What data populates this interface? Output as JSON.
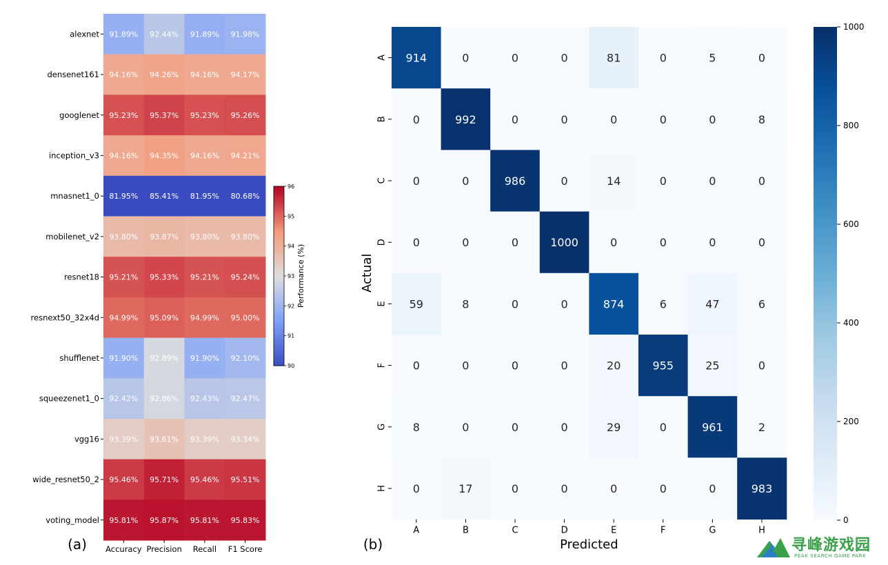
{
  "chart_data": [
    {
      "type": "heatmap",
      "panel_label": "(a)",
      "rows": [
        "alexnet",
        "densenet161",
        "googlenet",
        "inception_v3",
        "mnasnet1_0",
        "mobilenet_v2",
        "resnet18",
        "resnext50_32x4d",
        "shufflenet",
        "squeezenet1_0",
        "vgg16",
        "wide_resnet50_2",
        "voting_model"
      ],
      "columns": [
        "Accuracy",
        "Precision",
        "Recall",
        "F1 Score"
      ],
      "values": [
        [
          91.89,
          92.44,
          91.89,
          91.98
        ],
        [
          94.16,
          94.26,
          94.16,
          94.17
        ],
        [
          95.23,
          95.37,
          95.23,
          95.26
        ],
        [
          94.16,
          94.35,
          94.16,
          94.21
        ],
        [
          81.95,
          85.41,
          81.95,
          80.68
        ],
        [
          93.8,
          93.87,
          93.8,
          93.8
        ],
        [
          95.21,
          95.33,
          95.21,
          95.24
        ],
        [
          94.99,
          95.09,
          94.99,
          95.0
        ],
        [
          91.9,
          92.89,
          91.9,
          92.1
        ],
        [
          92.42,
          92.86,
          92.43,
          92.47
        ],
        [
          93.39,
          93.61,
          93.39,
          93.34
        ],
        [
          95.46,
          95.71,
          95.46,
          95.51
        ],
        [
          95.81,
          95.87,
          95.81,
          95.83
        ]
      ],
      "value_suffix": "%",
      "colormap": "coolwarm",
      "colorbar": {
        "label": "Performance (%)",
        "range": [
          90,
          96
        ],
        "ticks": [
          90,
          91,
          92,
          93,
          94,
          95,
          96
        ]
      }
    },
    {
      "type": "heatmap",
      "panel_label": "(b)",
      "xlabel": "Predicted",
      "ylabel": "Actual",
      "labels": [
        "A",
        "B",
        "C",
        "D",
        "E",
        "F",
        "G",
        "H"
      ],
      "matrix": [
        [
          914,
          0,
          0,
          0,
          81,
          0,
          5,
          0
        ],
        [
          0,
          992,
          0,
          0,
          0,
          0,
          0,
          8
        ],
        [
          0,
          0,
          986,
          0,
          14,
          0,
          0,
          0
        ],
        [
          0,
          0,
          0,
          1000,
          0,
          0,
          0,
          0
        ],
        [
          59,
          8,
          0,
          0,
          874,
          6,
          47,
          6
        ],
        [
          0,
          0,
          0,
          0,
          20,
          955,
          25,
          0
        ],
        [
          8,
          0,
          0,
          0,
          29,
          0,
          961,
          2
        ],
        [
          0,
          17,
          0,
          0,
          0,
          0,
          0,
          983
        ]
      ],
      "colormap": "Blues",
      "colorbar": {
        "range": [
          0,
          1000
        ],
        "ticks": [
          0,
          200,
          400,
          600,
          800,
          1000
        ]
      }
    }
  ],
  "watermark": {
    "title": "寻峰游戏园",
    "subtitle": "PEAK SEARCH GAME PARK",
    "color": "#3aa14a"
  }
}
